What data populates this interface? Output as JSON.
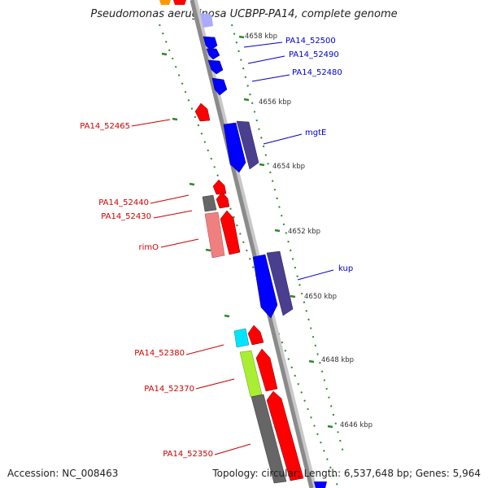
{
  "title": "Pseudomonas aeruginosa UCBPP-PA14, complete genome",
  "accession_text": "Accession: NC_008463",
  "stats_text": "Topology: circular; Length: 6,537,648 bp; Genes: 5,964",
  "colors": {
    "forward_gene": "#0000ff",
    "reverse_gene": "#ff0000",
    "forward_label": "#0000cc",
    "reverse_label": "#cc0000",
    "backbone": "#888888",
    "tick_track": "#2a8a2a"
  },
  "kbp_ticks": [
    "4658 kbp",
    "4656 kbp",
    "4654 kbp",
    "4652 kbp",
    "4650 kbp",
    "4648 kbp",
    "4646 kbp"
  ],
  "forward_labels": [
    "PA14_52500",
    "PA14_52490",
    "PA14_52480",
    "mgtE",
    "kup"
  ],
  "reverse_labels": [
    "PA14_52465",
    "PA14_52440",
    "PA14_52430",
    "rimO",
    "PA14_52380",
    "PA14_52370",
    "PA14_52350"
  ]
}
